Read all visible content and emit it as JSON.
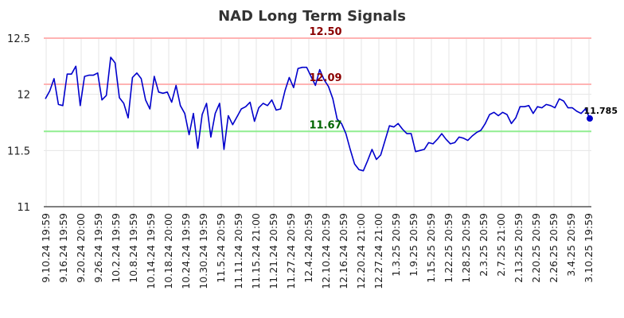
{
  "chart_data": {
    "type": "line",
    "title": "NAD Long Term Signals",
    "ylim": [
      11,
      12.5
    ],
    "yticks": [
      11,
      11.5,
      12,
      12.5
    ],
    "ytick_labels": [
      "11",
      "11.5",
      "12",
      "12.5"
    ],
    "x_tick_labels": [
      "9.10.24 19:59",
      "9.16.24 19:59",
      "9.20.24 20:00",
      "9.26.24 19:59",
      "10.2.24 19:59",
      "10.8.24 19:59",
      "10.14.24 19:59",
      "10.18.24 20:00",
      "10.24.24 19:59",
      "10.30.24 19:59",
      "11.5.24 20:59",
      "11.11.24 20:59",
      "11.15.24 21:00",
      "11.21.24 20:59",
      "11.27.24 20:59",
      "12.4.24 20:59",
      "12.10.24 20:59",
      "12.16.24 20:59",
      "12.20.24 21:00",
      "12.27.24 21:00",
      "1.3.25 20:59",
      "1.9.25 20:59",
      "1.15.25 20:59",
      "1.22.25 20:59",
      "1.28.25 20:59",
      "2.3.25 20:59",
      "2.7.25 21:00",
      "2.13.25 20:59",
      "2.20.25 20:59",
      "2.26.25 20:59",
      "3.4.25 20:59",
      "3.10.25 19:59"
    ],
    "grid": true,
    "legend": "none",
    "levels": [
      {
        "value": 12.5,
        "label": "12.50",
        "color": "#ffb3b3",
        "text_color": "#8b0000"
      },
      {
        "value": 12.09,
        "label": "12.09",
        "color": "#ffb3b3",
        "text_color": "#8b0000"
      },
      {
        "value": 11.67,
        "label": "11.67",
        "color": "#90ee90",
        "text_color": "#006400"
      }
    ],
    "last_point_label": "11.785",
    "series": [
      {
        "color": "#0000cc",
        "values": [
          11.96,
          12.03,
          12.14,
          11.91,
          11.9,
          12.18,
          12.18,
          12.25,
          11.9,
          12.16,
          12.17,
          12.17,
          12.19,
          11.95,
          11.99,
          12.33,
          12.28,
          11.97,
          11.92,
          11.79,
          12.15,
          12.19,
          12.14,
          11.95,
          11.87,
          12.16,
          12.02,
          12.01,
          12.02,
          11.93,
          12.08,
          11.9,
          11.83,
          11.64,
          11.83,
          11.52,
          11.82,
          11.92,
          11.62,
          11.83,
          11.92,
          11.51,
          11.81,
          11.73,
          11.8,
          11.87,
          11.89,
          11.93,
          11.76,
          11.88,
          11.92,
          11.9,
          11.95,
          11.86,
          11.87,
          12.03,
          12.15,
          12.06,
          12.23,
          12.24,
          12.24,
          12.16,
          12.08,
          12.22,
          12.13,
          12.07,
          11.96,
          11.78,
          11.74,
          11.65,
          11.51,
          11.38,
          11.33,
          11.32,
          11.41,
          11.51,
          11.42,
          11.46,
          11.59,
          11.72,
          11.71,
          11.74,
          11.69,
          11.65,
          11.65,
          11.49,
          11.5,
          11.51,
          11.57,
          11.56,
          11.6,
          11.65,
          11.6,
          11.56,
          11.57,
          11.62,
          11.61,
          11.59,
          11.63,
          11.66,
          11.68,
          11.74,
          11.82,
          11.84,
          11.81,
          11.84,
          11.82,
          11.74,
          11.79,
          11.89,
          11.89,
          11.9,
          11.83,
          11.89,
          11.88,
          11.91,
          11.9,
          11.88,
          11.96,
          11.94,
          11.88,
          11.88,
          11.85,
          11.83,
          11.87,
          11.785
        ]
      }
    ]
  }
}
